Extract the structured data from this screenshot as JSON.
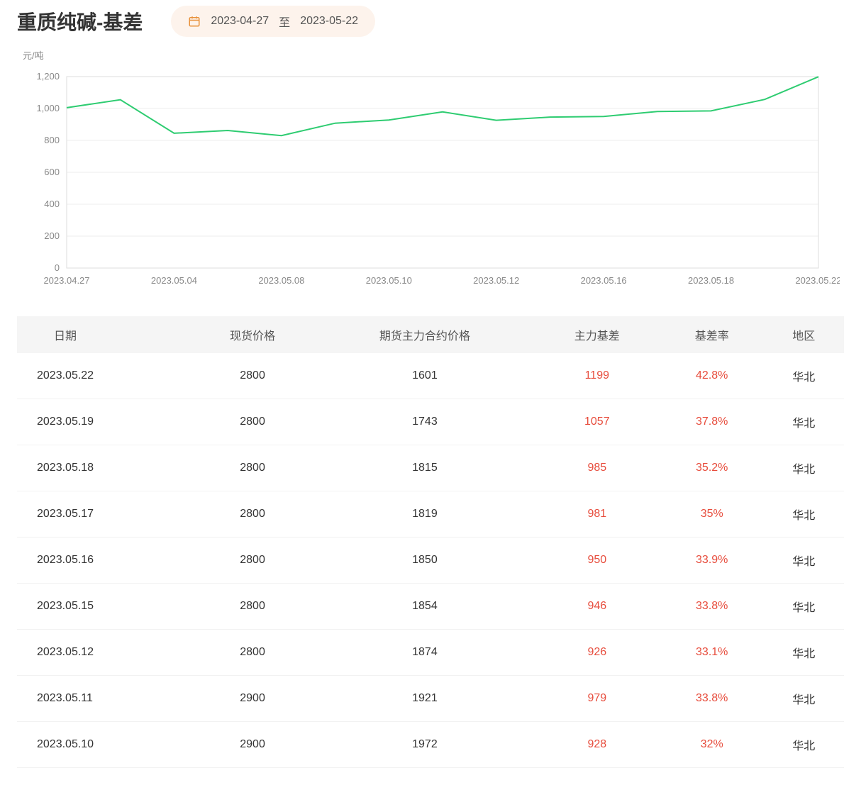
{
  "header": {
    "title": "重质纯碱-基差",
    "date_from": "2023-04-27",
    "date_to": "2023-05-22",
    "date_sep": "至"
  },
  "chart": {
    "type": "line",
    "y_unit": "元/吨",
    "line_color": "#2ecc71",
    "grid_color": "#eeeeee",
    "axis_text_color": "#888888",
    "border_color": "#dddddd",
    "background_color": "#ffffff",
    "ylim": [
      0,
      1200
    ],
    "ytick_step": 200,
    "x_labels": [
      "2023.04.27",
      "2023.05.04",
      "2023.05.08",
      "2023.05.10",
      "2023.05.12",
      "2023.05.16",
      "2023.05.18",
      "2023.05.22"
    ],
    "points": [
      {
        "x": "2023.04.27",
        "y": 1005
      },
      {
        "x": "2023.04.28",
        "y": 1055
      },
      {
        "x": "2023.05.04",
        "y": 845
      },
      {
        "x": "2023.05.05",
        "y": 862
      },
      {
        "x": "2023.05.08",
        "y": 830
      },
      {
        "x": "2023.05.09",
        "y": 908
      },
      {
        "x": "2023.05.10",
        "y": 928
      },
      {
        "x": "2023.05.11",
        "y": 979
      },
      {
        "x": "2023.05.12",
        "y": 926
      },
      {
        "x": "2023.05.15",
        "y": 946
      },
      {
        "x": "2023.05.16",
        "y": 950
      },
      {
        "x": "2023.05.17",
        "y": 981
      },
      {
        "x": "2023.05.18",
        "y": 985
      },
      {
        "x": "2023.05.19",
        "y": 1057
      },
      {
        "x": "2023.05.22",
        "y": 1199
      }
    ]
  },
  "table": {
    "columns": [
      "日期",
      "现货价格",
      "期货主力合约价格",
      "主力基差",
      "基差率",
      "地区"
    ],
    "highlight_cols": [
      3,
      4
    ],
    "highlight_color": "#e74c3c",
    "rows": [
      [
        "2023.05.22",
        "2800",
        "1601",
        "1199",
        "42.8%",
        "华北"
      ],
      [
        "2023.05.19",
        "2800",
        "1743",
        "1057",
        "37.8%",
        "华北"
      ],
      [
        "2023.05.18",
        "2800",
        "1815",
        "985",
        "35.2%",
        "华北"
      ],
      [
        "2023.05.17",
        "2800",
        "1819",
        "981",
        "35%",
        "华北"
      ],
      [
        "2023.05.16",
        "2800",
        "1850",
        "950",
        "33.9%",
        "华北"
      ],
      [
        "2023.05.15",
        "2800",
        "1854",
        "946",
        "33.8%",
        "华北"
      ],
      [
        "2023.05.12",
        "2800",
        "1874",
        "926",
        "33.1%",
        "华北"
      ],
      [
        "2023.05.11",
        "2900",
        "1921",
        "979",
        "33.8%",
        "华北"
      ],
      [
        "2023.05.10",
        "2900",
        "1972",
        "928",
        "32%",
        "华北"
      ]
    ]
  }
}
